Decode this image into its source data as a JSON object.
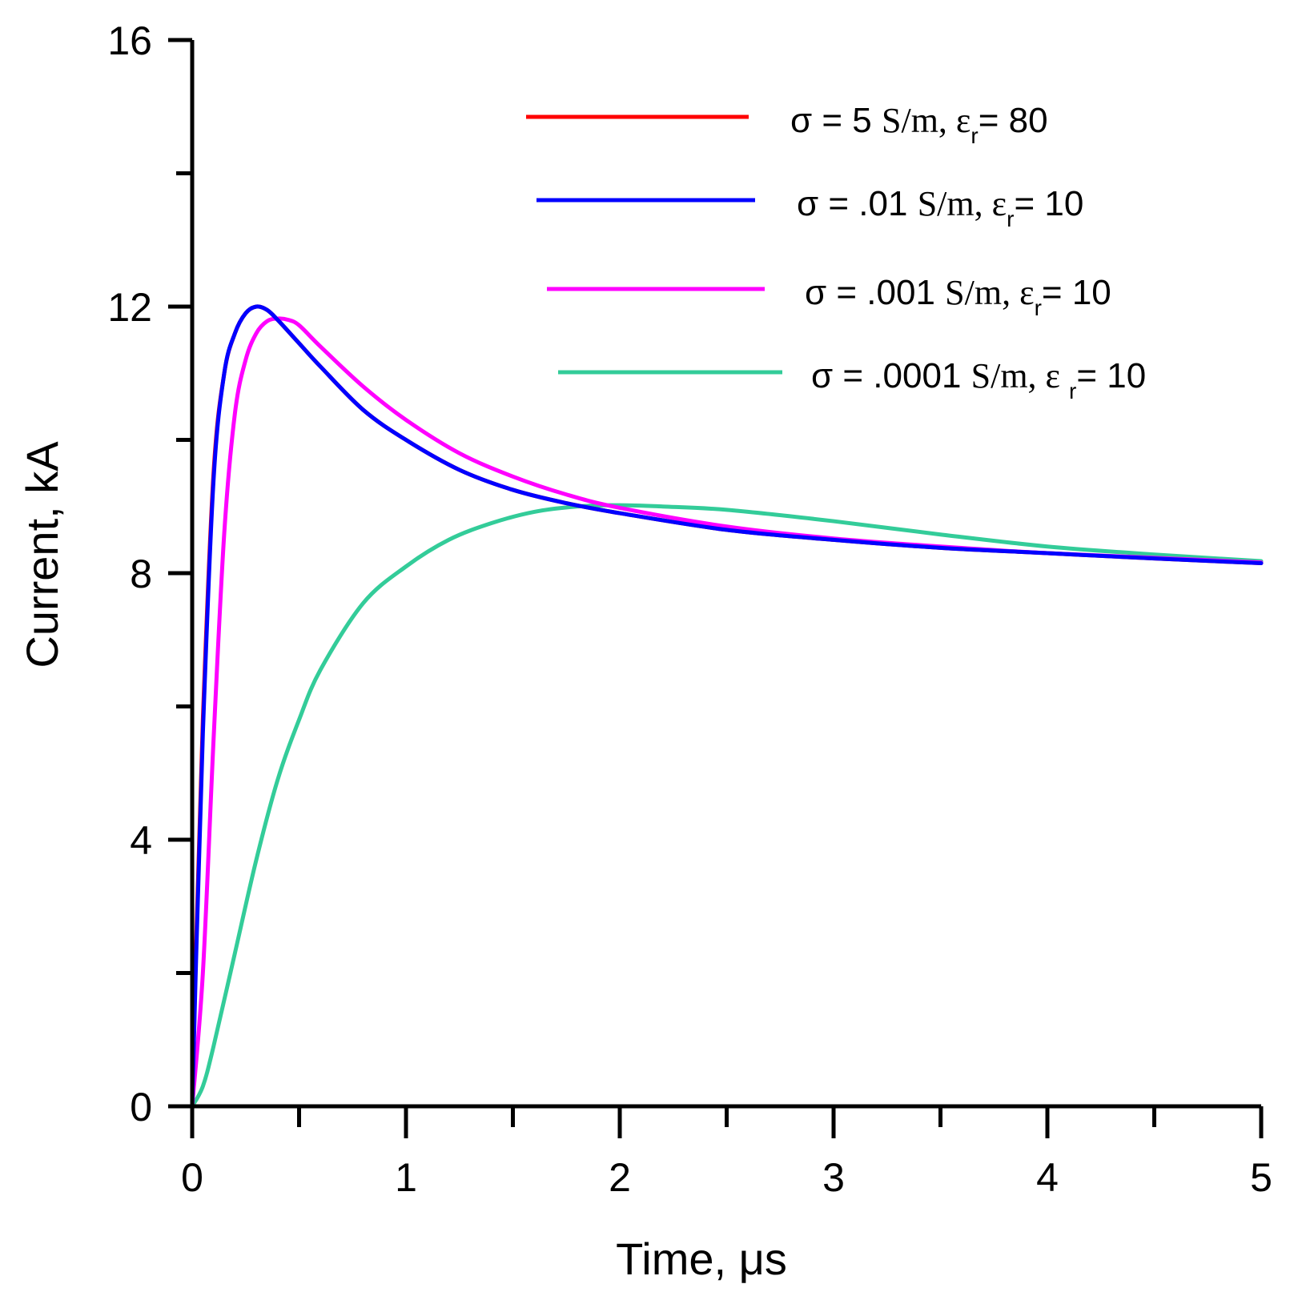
{
  "chart_data": {
    "type": "line",
    "xlabel": "Time, μs",
    "ylabel": "Current, kA",
    "xlim": [
      0,
      5
    ],
    "ylim": [
      0,
      16
    ],
    "x_ticks": [
      "0",
      "1",
      "2",
      "3",
      "4",
      "5"
    ],
    "y_ticks": [
      "0",
      "4",
      "8",
      "12",
      "16"
    ],
    "legend_position": "top-right",
    "grid": false,
    "series": [
      {
        "name": "σ = 5 S/m, εr = 80",
        "label": {
          "sigma": "σ = 5 ",
          "unit": "S/m",
          "eps": ", ε",
          "sub": "r",
          "tail": "= 80"
        },
        "color": "#ff0000",
        "x": [
          0,
          0.02,
          0.05,
          0.1,
          0.15,
          0.2,
          0.25,
          0.3,
          0.35,
          0.4,
          0.5,
          0.6,
          0.8,
          1.0,
          1.25,
          1.5,
          1.75,
          2.0,
          2.5,
          3.0,
          3.5,
          4.0,
          4.5,
          5.0
        ],
        "y": [
          0,
          2.6,
          5.8,
          9.5,
          11.0,
          11.6,
          11.9,
          12.0,
          11.95,
          11.8,
          11.45,
          11.1,
          10.45,
          10.0,
          9.55,
          9.25,
          9.05,
          8.9,
          8.65,
          8.5,
          8.38,
          8.3,
          8.22,
          8.15
        ]
      },
      {
        "name": "σ = .01 S/m, εr = 10",
        "label": {
          "sigma": "σ = .01 ",
          "unit": "S/m",
          "eps": ", ε",
          "sub": "r",
          "tail": "= 10"
        },
        "color": "#0000ff",
        "x": [
          0,
          0.02,
          0.05,
          0.1,
          0.15,
          0.2,
          0.25,
          0.3,
          0.35,
          0.4,
          0.5,
          0.6,
          0.8,
          1.0,
          1.25,
          1.5,
          1.75,
          2.0,
          2.5,
          3.0,
          3.5,
          4.0,
          4.5,
          5.0
        ],
        "y": [
          0,
          2.4,
          5.6,
          9.4,
          11.0,
          11.6,
          11.9,
          12.0,
          11.95,
          11.8,
          11.45,
          11.1,
          10.45,
          10.0,
          9.55,
          9.25,
          9.05,
          8.9,
          8.65,
          8.5,
          8.38,
          8.3,
          8.22,
          8.15
        ]
      },
      {
        "name": "σ = .001 S/m, εr = 10",
        "label": {
          "sigma": "σ = .001 ",
          "unit": "S/m",
          "eps": ", ε",
          "sub": "r",
          "tail": "= 10"
        },
        "color": "#ff00ff",
        "x": [
          0,
          0.05,
          0.1,
          0.15,
          0.2,
          0.25,
          0.3,
          0.35,
          0.4,
          0.45,
          0.5,
          0.6,
          0.8,
          1.0,
          1.25,
          1.5,
          1.75,
          2.0,
          2.5,
          3.0,
          3.5,
          4.0,
          4.5,
          5.0
        ],
        "y": [
          0,
          2.0,
          5.5,
          8.6,
          10.4,
          11.2,
          11.6,
          11.78,
          11.82,
          11.8,
          11.72,
          11.4,
          10.8,
          10.3,
          9.8,
          9.45,
          9.18,
          8.98,
          8.7,
          8.52,
          8.4,
          8.3,
          8.23,
          8.16
        ]
      },
      {
        "name": "σ = .0001 S/m, ε r= 10",
        "label": {
          "sigma": "σ = .0001 ",
          "unit": "S/m",
          "eps": ", ε ",
          "sub": "r",
          "tail": "= 10"
        },
        "color": "#33cc99",
        "x": [
          0,
          0.05,
          0.1,
          0.2,
          0.3,
          0.4,
          0.5,
          0.6,
          0.8,
          1.0,
          1.2,
          1.4,
          1.6,
          1.8,
          2.0,
          2.2,
          2.5,
          3.0,
          3.5,
          4.0,
          4.5,
          5.0
        ],
        "y": [
          0,
          0.3,
          0.9,
          2.3,
          3.7,
          4.9,
          5.8,
          6.55,
          7.55,
          8.1,
          8.5,
          8.75,
          8.92,
          9.0,
          9.02,
          9.0,
          8.95,
          8.78,
          8.58,
          8.4,
          8.28,
          8.18
        ]
      }
    ]
  }
}
